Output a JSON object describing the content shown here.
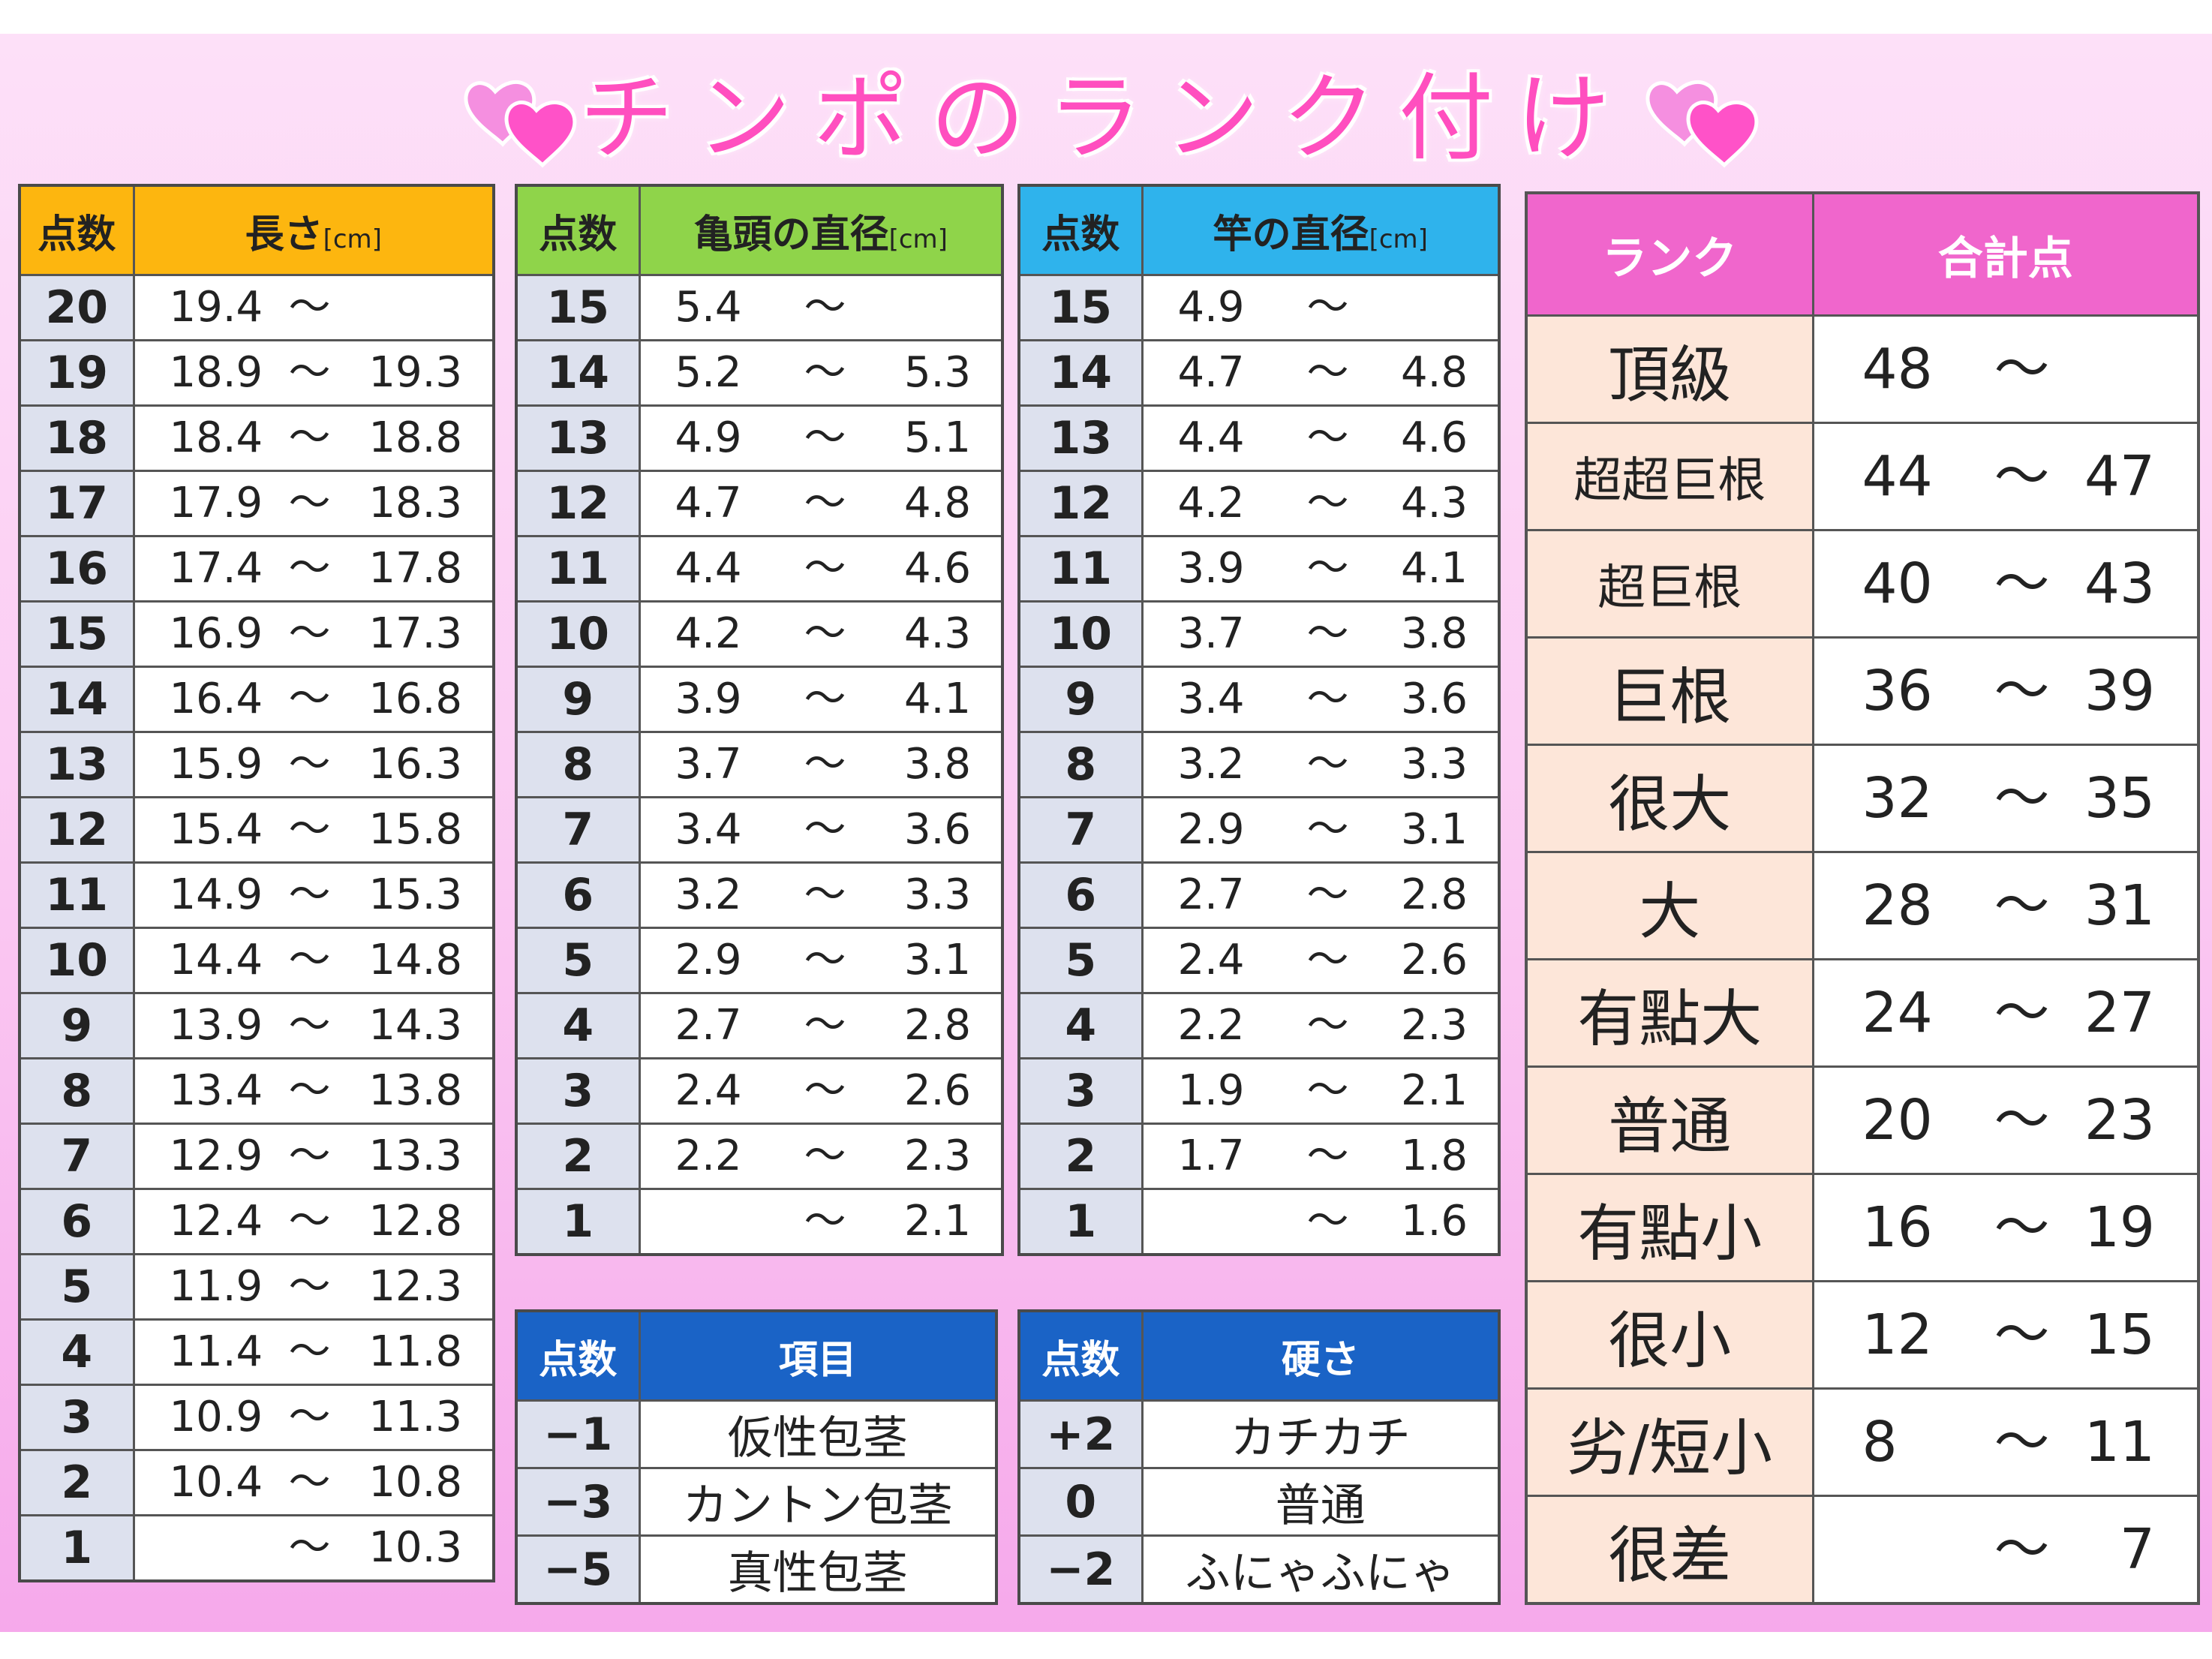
{
  "title": "チンポのランク付け",
  "length_table": {
    "header_points": "点数",
    "header_label": "長さ",
    "header_unit": "[cm]",
    "rows": [
      {
        "points": "20",
        "min": "19.4",
        "sep": "〜",
        "max": ""
      },
      {
        "points": "19",
        "min": "18.9",
        "sep": "〜",
        "max": "19.3"
      },
      {
        "points": "18",
        "min": "18.4",
        "sep": "〜",
        "max": "18.8"
      },
      {
        "points": "17",
        "min": "17.9",
        "sep": "〜",
        "max": "18.3"
      },
      {
        "points": "16",
        "min": "17.4",
        "sep": "〜",
        "max": "17.8"
      },
      {
        "points": "15",
        "min": "16.9",
        "sep": "〜",
        "max": "17.3"
      },
      {
        "points": "14",
        "min": "16.4",
        "sep": "〜",
        "max": "16.8"
      },
      {
        "points": "13",
        "min": "15.9",
        "sep": "〜",
        "max": "16.3"
      },
      {
        "points": "12",
        "min": "15.4",
        "sep": "〜",
        "max": "15.8"
      },
      {
        "points": "11",
        "min": "14.9",
        "sep": "〜",
        "max": "15.3"
      },
      {
        "points": "10",
        "min": "14.4",
        "sep": "〜",
        "max": "14.8"
      },
      {
        "points": "9",
        "min": "13.9",
        "sep": "〜",
        "max": "14.3"
      },
      {
        "points": "8",
        "min": "13.4",
        "sep": "〜",
        "max": "13.8"
      },
      {
        "points": "7",
        "min": "12.9",
        "sep": "〜",
        "max": "13.3"
      },
      {
        "points": "6",
        "min": "12.4",
        "sep": "〜",
        "max": "12.8"
      },
      {
        "points": "5",
        "min": "11.9",
        "sep": "〜",
        "max": "12.3"
      },
      {
        "points": "4",
        "min": "11.4",
        "sep": "〜",
        "max": "11.8"
      },
      {
        "points": "3",
        "min": "10.9",
        "sep": "〜",
        "max": "11.3"
      },
      {
        "points": "2",
        "min": "10.4",
        "sep": "〜",
        "max": "10.8"
      },
      {
        "points": "1",
        "min": "",
        "sep": "〜",
        "max": "10.3"
      }
    ]
  },
  "glans_table": {
    "header_points": "点数",
    "header_label": "亀頭の直径",
    "header_unit": "[cm]",
    "rows": [
      {
        "points": "15",
        "min": "5.4",
        "sep": "〜",
        "max": ""
      },
      {
        "points": "14",
        "min": "5.2",
        "sep": "〜",
        "max": "5.3"
      },
      {
        "points": "13",
        "min": "4.9",
        "sep": "〜",
        "max": "5.1"
      },
      {
        "points": "12",
        "min": "4.7",
        "sep": "〜",
        "max": "4.8"
      },
      {
        "points": "11",
        "min": "4.4",
        "sep": "〜",
        "max": "4.6"
      },
      {
        "points": "10",
        "min": "4.2",
        "sep": "〜",
        "max": "4.3"
      },
      {
        "points": "9",
        "min": "3.9",
        "sep": "〜",
        "max": "4.1"
      },
      {
        "points": "8",
        "min": "3.7",
        "sep": "〜",
        "max": "3.8"
      },
      {
        "points": "7",
        "min": "3.4",
        "sep": "〜",
        "max": "3.6"
      },
      {
        "points": "6",
        "min": "3.2",
        "sep": "〜",
        "max": "3.3"
      },
      {
        "points": "5",
        "min": "2.9",
        "sep": "〜",
        "max": "3.1"
      },
      {
        "points": "4",
        "min": "2.7",
        "sep": "〜",
        "max": "2.8"
      },
      {
        "points": "3",
        "min": "2.4",
        "sep": "〜",
        "max": "2.6"
      },
      {
        "points": "2",
        "min": "2.2",
        "sep": "〜",
        "max": "2.3"
      },
      {
        "points": "1",
        "min": "",
        "sep": "〜",
        "max": "2.1"
      }
    ]
  },
  "shaft_table": {
    "header_points": "点数",
    "header_label": "竿の直径",
    "header_unit": "[cm]",
    "rows": [
      {
        "points": "15",
        "min": "4.9",
        "sep": "〜",
        "max": ""
      },
      {
        "points": "14",
        "min": "4.7",
        "sep": "〜",
        "max": "4.8"
      },
      {
        "points": "13",
        "min": "4.4",
        "sep": "〜",
        "max": "4.6"
      },
      {
        "points": "12",
        "min": "4.2",
        "sep": "〜",
        "max": "4.3"
      },
      {
        "points": "11",
        "min": "3.9",
        "sep": "〜",
        "max": "4.1"
      },
      {
        "points": "10",
        "min": "3.7",
        "sep": "〜",
        "max": "3.8"
      },
      {
        "points": "9",
        "min": "3.4",
        "sep": "〜",
        "max": "3.6"
      },
      {
        "points": "8",
        "min": "3.2",
        "sep": "〜",
        "max": "3.3"
      },
      {
        "points": "7",
        "min": "2.9",
        "sep": "〜",
        "max": "3.1"
      },
      {
        "points": "6",
        "min": "2.7",
        "sep": "〜",
        "max": "2.8"
      },
      {
        "points": "5",
        "min": "2.4",
        "sep": "〜",
        "max": "2.6"
      },
      {
        "points": "4",
        "min": "2.2",
        "sep": "〜",
        "max": "2.3"
      },
      {
        "points": "3",
        "min": "1.9",
        "sep": "〜",
        "max": "2.1"
      },
      {
        "points": "2",
        "min": "1.7",
        "sep": "〜",
        "max": "1.8"
      },
      {
        "points": "1",
        "min": "",
        "sep": "〜",
        "max": "1.6"
      }
    ]
  },
  "item_table": {
    "header_points": "点数",
    "header_label": "項目",
    "rows": [
      {
        "points": "−1",
        "label": "仮性包茎"
      },
      {
        "points": "−3",
        "label": "カントン包茎"
      },
      {
        "points": "−5",
        "label": "真性包茎"
      }
    ]
  },
  "hardness_table": {
    "header_points": "点数",
    "header_label": "硬さ",
    "rows": [
      {
        "points": "+2",
        "label": "カチカチ"
      },
      {
        "points": "0",
        "label": "普通"
      },
      {
        "points": "−2",
        "label": "ふにゃふにゃ"
      }
    ]
  },
  "rank_table": {
    "header_rank": "ランク",
    "header_total": "合計点",
    "rows": [
      {
        "rank": "頂級",
        "min": "48",
        "sep": "〜",
        "max": ""
      },
      {
        "rank": "超超巨根",
        "min": "44",
        "sep": "〜",
        "max": "47"
      },
      {
        "rank": "超巨根",
        "min": "40",
        "sep": "〜",
        "max": "43"
      },
      {
        "rank": "巨根",
        "min": "36",
        "sep": "〜",
        "max": "39"
      },
      {
        "rank": "很大",
        "min": "32",
        "sep": "〜",
        "max": "35"
      },
      {
        "rank": "大",
        "min": "28",
        "sep": "〜",
        "max": "31"
      },
      {
        "rank": "有點大",
        "min": "24",
        "sep": "〜",
        "max": "27"
      },
      {
        "rank": "普通",
        "min": "20",
        "sep": "〜",
        "max": "23"
      },
      {
        "rank": "有點小",
        "min": "16",
        "sep": "〜",
        "max": "19"
      },
      {
        "rank": "很小",
        "min": "12",
        "sep": "〜",
        "max": "15"
      },
      {
        "rank": "劣/短小",
        "min": "8",
        "sep": "〜",
        "max": "11"
      },
      {
        "rank": "很差",
        "min": "",
        "sep": "〜",
        "max": "7"
      }
    ]
  },
  "colors": {
    "title": "#ff4fbf",
    "length_header": "#fdb60f",
    "glans_header": "#8fd44a",
    "shaft_header": "#2fb3ec",
    "modifier_header": "#1a63c6",
    "rank_header": "#f066cc",
    "rank_cell": "#fde6d9",
    "points_cell": "#dde1ee"
  },
  "icons": {
    "decoration": "double-heart-icon"
  }
}
